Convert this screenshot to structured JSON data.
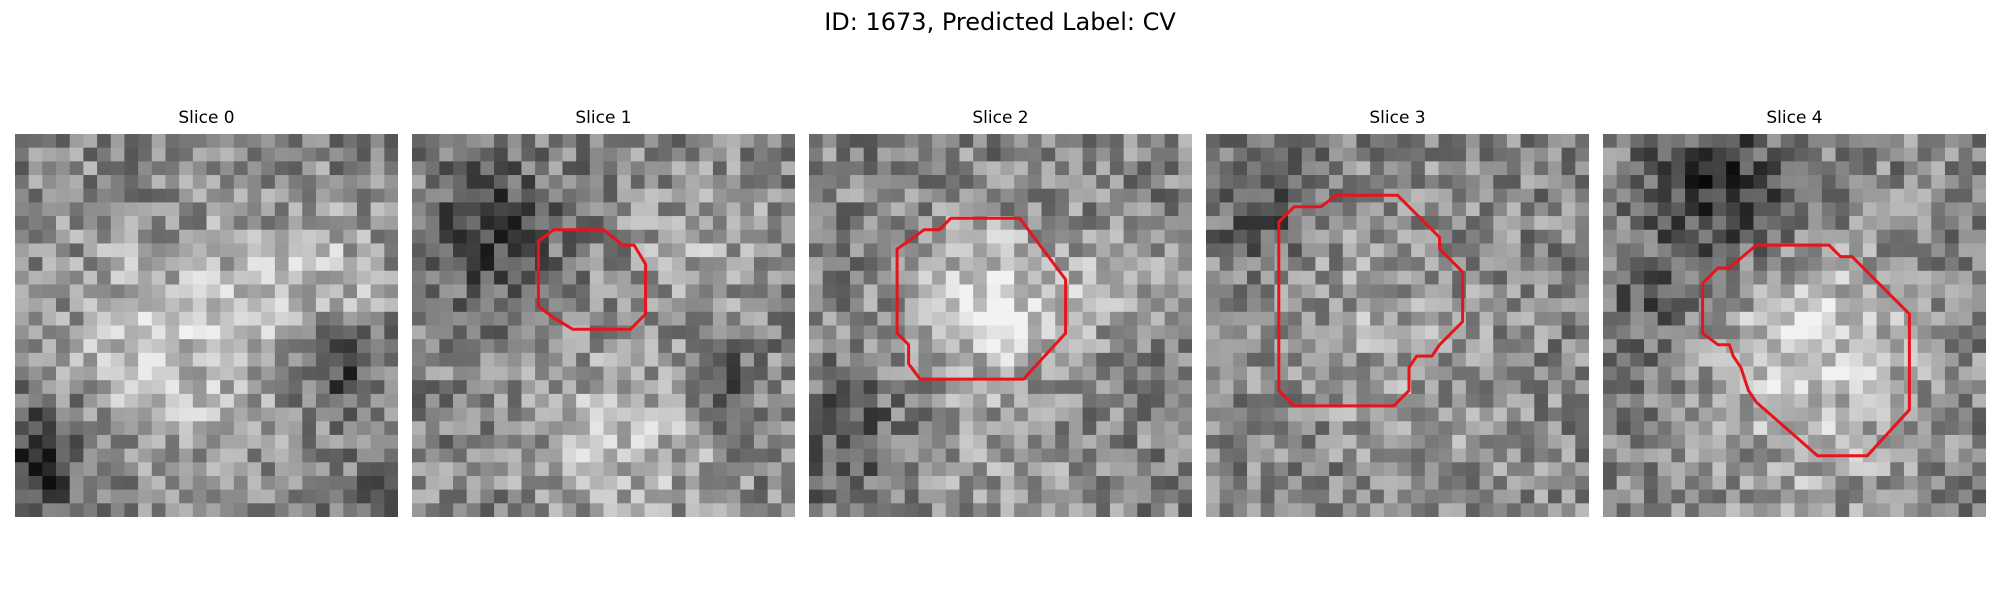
{
  "figure": {
    "title": "ID: 1673, Predicted Label: CV"
  },
  "colors": {
    "contour": "#e8141c"
  },
  "panels": [
    {
      "title": "Slice 0",
      "seed": 11,
      "blobs": [
        [
          0.42,
          0.55,
          0.3,
          0.25
        ],
        [
          0.8,
          0.38,
          0.18,
          0.2
        ],
        [
          0.85,
          0.62,
          0.12,
          -0.3
        ],
        [
          0.05,
          0.85,
          0.15,
          -0.35
        ],
        [
          0.95,
          0.95,
          0.1,
          -0.2
        ]
      ],
      "contour": []
    },
    {
      "title": "Slice 1",
      "seed": 23,
      "blobs": [
        [
          0.55,
          0.8,
          0.25,
          0.22
        ],
        [
          0.75,
          0.3,
          0.18,
          0.15
        ],
        [
          0.2,
          0.25,
          0.18,
          -0.25
        ],
        [
          0.8,
          0.65,
          0.1,
          -0.25
        ]
      ],
      "contour": [
        [
          0.33,
          0.28
        ],
        [
          0.37,
          0.25
        ],
        [
          0.5,
          0.25
        ],
        [
          0.55,
          0.29
        ],
        [
          0.58,
          0.29
        ],
        [
          0.61,
          0.34
        ],
        [
          0.61,
          0.47
        ],
        [
          0.57,
          0.51
        ],
        [
          0.42,
          0.51
        ],
        [
          0.37,
          0.48
        ],
        [
          0.33,
          0.45
        ]
      ]
    },
    {
      "title": "Slice 2",
      "seed": 37,
      "blobs": [
        [
          0.48,
          0.45,
          0.2,
          0.35
        ],
        [
          0.8,
          0.4,
          0.12,
          0.15
        ],
        [
          0.5,
          0.9,
          0.2,
          0.1
        ],
        [
          0.1,
          0.8,
          0.15,
          -0.2
        ]
      ],
      "contour": [
        [
          0.26,
          0.28
        ],
        [
          0.3,
          0.25
        ],
        [
          0.34,
          0.25
        ],
        [
          0.37,
          0.22
        ],
        [
          0.55,
          0.22
        ],
        [
          0.64,
          0.34
        ],
        [
          0.67,
          0.38
        ],
        [
          0.67,
          0.52
        ],
        [
          0.56,
          0.64
        ],
        [
          0.29,
          0.64
        ],
        [
          0.26,
          0.6
        ],
        [
          0.26,
          0.55
        ],
        [
          0.23,
          0.52
        ],
        [
          0.23,
          0.3
        ]
      ]
    },
    {
      "title": "Slice 3",
      "seed": 53,
      "blobs": [
        [
          0.45,
          0.5,
          0.3,
          0.12
        ],
        [
          0.15,
          0.2,
          0.15,
          -0.2
        ],
        [
          0.7,
          0.85,
          0.2,
          0.05
        ]
      ],
      "contour": [
        [
          0.19,
          0.23
        ],
        [
          0.23,
          0.19
        ],
        [
          0.3,
          0.19
        ],
        [
          0.34,
          0.16
        ],
        [
          0.5,
          0.16
        ],
        [
          0.61,
          0.27
        ],
        [
          0.61,
          0.3
        ],
        [
          0.67,
          0.36
        ],
        [
          0.67,
          0.49
        ],
        [
          0.61,
          0.55
        ],
        [
          0.59,
          0.58
        ],
        [
          0.55,
          0.58
        ],
        [
          0.53,
          0.61
        ],
        [
          0.53,
          0.67
        ],
        [
          0.49,
          0.71
        ],
        [
          0.23,
          0.71
        ],
        [
          0.19,
          0.67
        ]
      ]
    },
    {
      "title": "Slice 4",
      "seed": 71,
      "blobs": [
        [
          0.55,
          0.55,
          0.25,
          0.3
        ],
        [
          0.3,
          0.15,
          0.2,
          -0.3
        ],
        [
          0.1,
          0.45,
          0.12,
          -0.15
        ],
        [
          0.55,
          0.9,
          0.2,
          0.1
        ]
      ],
      "contour": [
        [
          0.26,
          0.39
        ],
        [
          0.3,
          0.35
        ],
        [
          0.33,
          0.35
        ],
        [
          0.4,
          0.29
        ],
        [
          0.59,
          0.29
        ],
        [
          0.62,
          0.32
        ],
        [
          0.65,
          0.32
        ],
        [
          0.8,
          0.47
        ],
        [
          0.8,
          0.72
        ],
        [
          0.69,
          0.84
        ],
        [
          0.56,
          0.84
        ],
        [
          0.4,
          0.7
        ],
        [
          0.38,
          0.67
        ],
        [
          0.36,
          0.61
        ],
        [
          0.34,
          0.58
        ],
        [
          0.33,
          0.55
        ],
        [
          0.3,
          0.55
        ],
        [
          0.26,
          0.52
        ]
      ]
    }
  ]
}
